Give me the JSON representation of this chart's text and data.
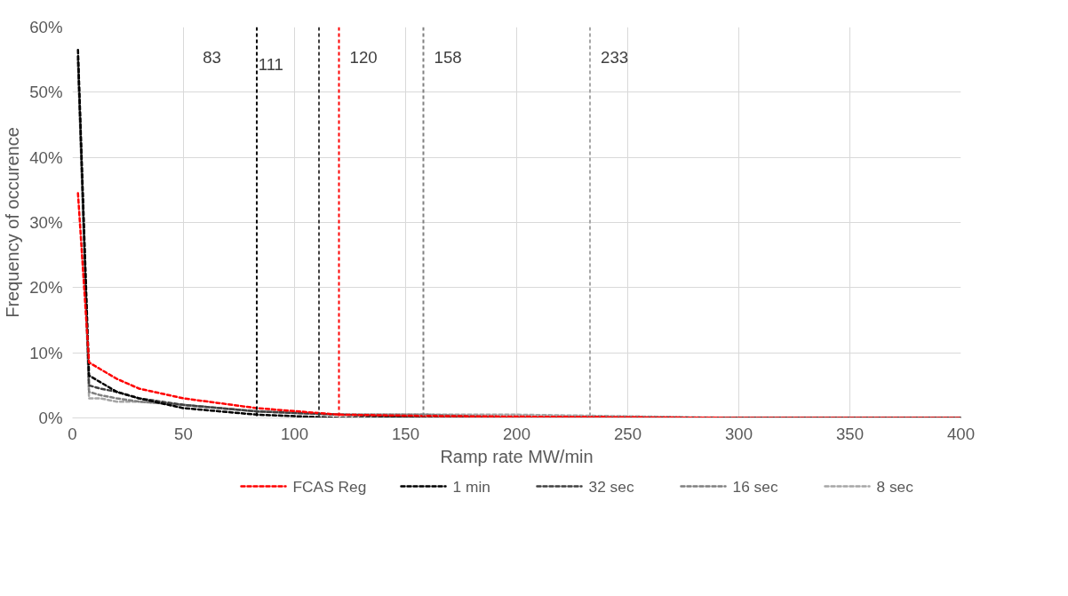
{
  "chart_data": {
    "type": "line",
    "xlabel": "Ramp rate MW/min",
    "ylabel": "Frequency of occurence",
    "x": [
      2.5,
      7.5,
      12.5,
      20,
      30,
      50,
      83,
      120,
      160,
      200,
      300,
      400
    ],
    "series": [
      {
        "name": "FCAS Reg",
        "color": "#ff0000",
        "values": [
          34.5,
          8.5,
          7.5,
          6,
          4.5,
          3,
          1.5,
          0.5,
          0.3,
          0.2,
          0,
          0
        ]
      },
      {
        "name": "1 min",
        "color": "#000000",
        "values": [
          56.5,
          6.5,
          5.5,
          4,
          3,
          1.5,
          0.5,
          0,
          0,
          0,
          0,
          0
        ]
      },
      {
        "name": "32 sec",
        "color": "#404040",
        "values": [
          55.5,
          5,
          4.5,
          4,
          3,
          2,
          1,
          0.5,
          0,
          0,
          0,
          0
        ]
      },
      {
        "name": "16 sec",
        "color": "#808080",
        "values": [
          55,
          4,
          3.5,
          3,
          2.5,
          2,
          1,
          0.5,
          0.5,
          0,
          0,
          0
        ]
      },
      {
        "name": "8 sec",
        "color": "#a6a6a6",
        "values": [
          54.5,
          3,
          3,
          2.5,
          2.5,
          2,
          1,
          0.5,
          0.5,
          0.5,
          0,
          0
        ]
      }
    ],
    "xlim": [
      0,
      400
    ],
    "xticks": [
      0,
      50,
      100,
      150,
      200,
      250,
      300,
      350,
      400
    ],
    "ylim": [
      0,
      60
    ],
    "yticks": [
      {
        "value": 0,
        "label": "0%"
      },
      {
        "value": 10,
        "label": "10%"
      },
      {
        "value": 20,
        "label": "20%"
      },
      {
        "value": 30,
        "label": "30%"
      },
      {
        "value": 40,
        "label": "40%"
      },
      {
        "value": 50,
        "label": "50%"
      },
      {
        "value": 60,
        "label": "60%"
      }
    ],
    "ref_lines": [
      {
        "axis": "x",
        "value": 83,
        "label": "83",
        "color": "#000000",
        "line_style": "dashed"
      },
      {
        "axis": "x",
        "value": 111,
        "label": "111",
        "color": "#404040",
        "line_style": "dashed"
      },
      {
        "axis": "x",
        "value": 120,
        "label": "120",
        "color": "#ff0000",
        "line_style": "dashed"
      },
      {
        "axis": "x",
        "value": 158,
        "label": "158",
        "color": "#808080",
        "line_style": "dashed"
      },
      {
        "axis": "x",
        "value": 233,
        "label": "233",
        "color": "#a6a6a6",
        "line_style": "dashed"
      }
    ],
    "grid": true,
    "legend": "bottom",
    "line_style": "dashed",
    "marker": "none"
  }
}
